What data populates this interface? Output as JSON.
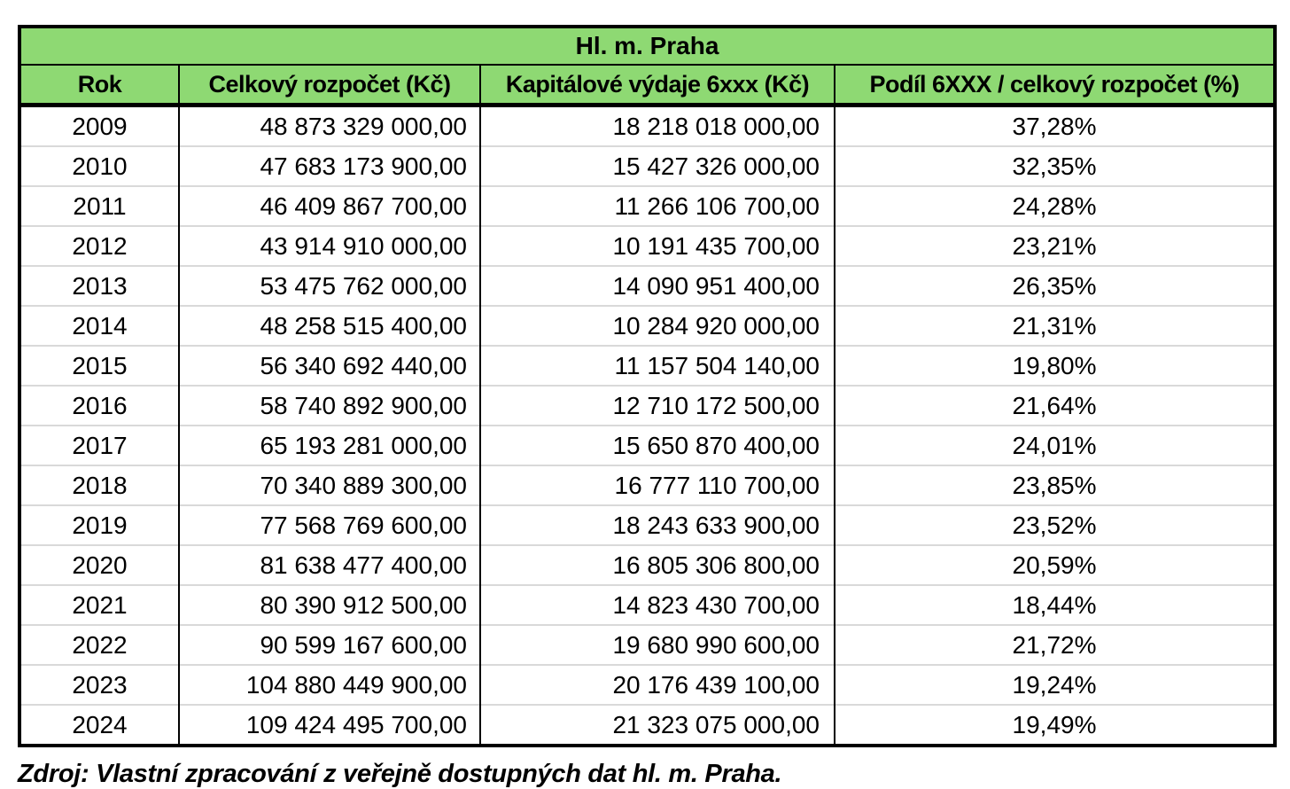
{
  "table": {
    "title": "Hl. m. Praha",
    "columns": [
      "Rok",
      "Celkový rozpočet (Kč)",
      "Kapitálové výdaje 6xxx (Kč)",
      "Podíl 6XXX / celkový rozpočet (%)"
    ],
    "rows": [
      [
        "2009",
        "48 873 329 000,00",
        "18 218 018 000,00",
        "37,28%"
      ],
      [
        "2010",
        "47 683 173 900,00",
        "15 427 326 000,00",
        "32,35%"
      ],
      [
        "2011",
        "46 409 867 700,00",
        "11 266 106 700,00",
        "24,28%"
      ],
      [
        "2012",
        "43 914 910 000,00",
        "10 191 435 700,00",
        "23,21%"
      ],
      [
        "2013",
        "53 475 762 000,00",
        "14 090 951 400,00",
        "26,35%"
      ],
      [
        "2014",
        "48 258 515 400,00",
        "10 284 920 000,00",
        "21,31%"
      ],
      [
        "2015",
        "56 340 692 440,00",
        "11 157 504 140,00",
        "19,80%"
      ],
      [
        "2016",
        "58 740 892 900,00",
        "12 710 172 500,00",
        "21,64%"
      ],
      [
        "2017",
        "65 193 281 000,00",
        "15 650 870 400,00",
        "24,01%"
      ],
      [
        "2018",
        "70 340 889 300,00",
        "16 777 110 700,00",
        "23,85%"
      ],
      [
        "2019",
        "77 568 769 600,00",
        "18 243 633 900,00",
        "23,52%"
      ],
      [
        "2020",
        "81 638 477 400,00",
        "16 805 306 800,00",
        "20,59%"
      ],
      [
        "2021",
        "80 390 912 500,00",
        "14 823 430 700,00",
        "18,44%"
      ],
      [
        "2022",
        "90 599 167 600,00",
        "19 680 990 600,00",
        "21,72%"
      ],
      [
        "2023",
        "104 880 449 900,00",
        "20 176 439 100,00",
        "19,24%"
      ],
      [
        "2024",
        "109 424 495 700,00",
        "21 323 075 000,00",
        "19,49%"
      ]
    ]
  },
  "source_note": "Zdroj: Vlastní zpracování z veřejně dostupných dat hl. m. Praha.",
  "colors": {
    "header_green": "#8ed973",
    "row_divider": "#d9d9d9",
    "border": "#000000"
  },
  "chart_data": {
    "type": "table",
    "title": "Hl. m. Praha",
    "columns": [
      "Rok",
      "Celkový rozpočet (Kč)",
      "Kapitálové výdaje 6xxx (Kč)",
      "Podíl 6XXX / celkový rozpočet (%)"
    ],
    "years": [
      2009,
      2010,
      2011,
      2012,
      2013,
      2014,
      2015,
      2016,
      2017,
      2018,
      2019,
      2020,
      2021,
      2022,
      2023,
      2024
    ],
    "celkovy_rozpocet_kc": [
      48873329000.0,
      47683173900.0,
      46409867700.0,
      43914910000.0,
      53475762000.0,
      48258515400.0,
      56340692440.0,
      58740892900.0,
      65193281000.0,
      70340889300.0,
      77568769600.0,
      81638477400.0,
      80390912500.0,
      90599167600.0,
      104880449900.0,
      109424495700.0
    ],
    "kapitalove_vydaje_6xxx_kc": [
      18218018000.0,
      15427326000.0,
      11266106700.0,
      10191435700.0,
      14090951400.0,
      10284920000.0,
      11157504140.0,
      12710172500.0,
      15650870400.0,
      16777110700.0,
      18243633900.0,
      16805306800.0,
      14823430700.0,
      19680990600.0,
      20176439100.0,
      21323075000.0
    ],
    "podil_percent": [
      37.28,
      32.35,
      24.28,
      23.21,
      26.35,
      21.31,
      19.8,
      21.64,
      24.01,
      23.85,
      23.52,
      20.59,
      18.44,
      21.72,
      19.24,
      19.49
    ],
    "source": "Zdroj: Vlastní zpracování z veřejně dostupných dat hl. m. Praha."
  }
}
